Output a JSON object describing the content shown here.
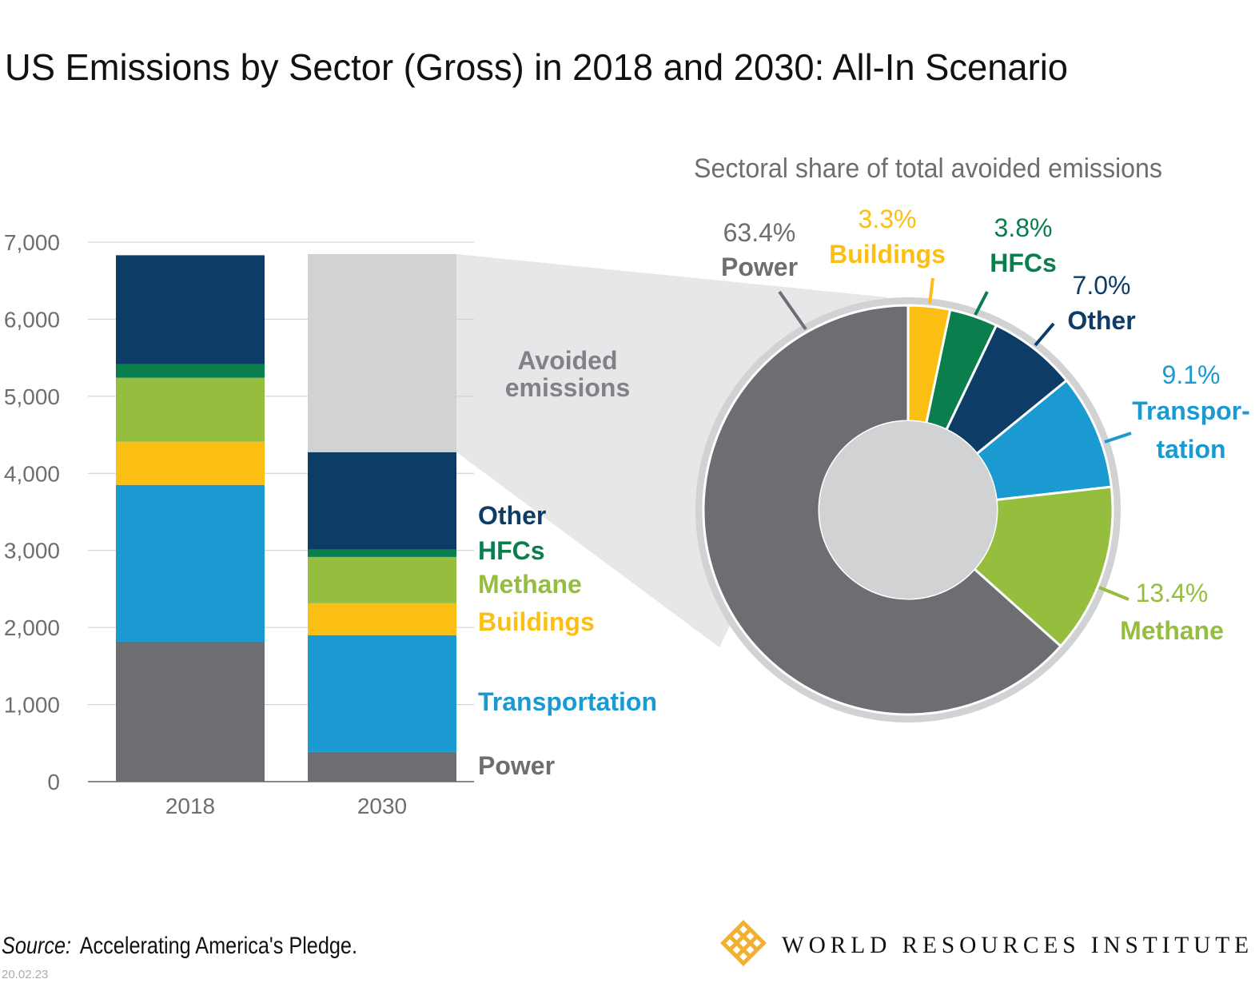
{
  "title": "US Emissions by Sector (Gross) in 2018 and 2030: All-In Scenario",
  "source_label": "Source:",
  "source_text": "Accelerating America's Pledge.",
  "date": "20.02.23",
  "logo_text": "WORLD RESOURCES INSTITUTE",
  "colors": {
    "Power": "#6d6e71",
    "Transportation": "#1b9ad2",
    "Buildings": "#fbbf14",
    "Methane": "#95bd3e",
    "HFCs": "#0b7e4e",
    "Other": "#0d3c66",
    "Avoided emissions": "#d1d2d4",
    "wedge": "#e6e7e8"
  },
  "chart_data": [
    {
      "type": "bar",
      "stacked": true,
      "categories": [
        "2018",
        "2030"
      ],
      "ylim": [
        0,
        7000
      ],
      "yticks": [
        "0",
        "1,000",
        "2,000",
        "3,000",
        "4,000",
        "5,000",
        "6,000",
        "7,000"
      ],
      "grid": true,
      "series": [
        {
          "name": "Power",
          "values": [
            1815,
            385
          ]
        },
        {
          "name": "Transportation",
          "values": [
            2035,
            1515
          ]
        },
        {
          "name": "Buildings",
          "values": [
            560,
            415
          ]
        },
        {
          "name": "Methane",
          "values": [
            830,
            600
          ]
        },
        {
          "name": "HFCs",
          "values": [
            175,
            95
          ]
        },
        {
          "name": "Other",
          "values": [
            1415,
            1265
          ]
        },
        {
          "name": "Avoided emissions",
          "values": [
            0,
            2570
          ]
        }
      ],
      "series_labels": [
        "Power",
        "Transportation",
        "Buildings",
        "Methane",
        "HFCs",
        "Other"
      ],
      "avoided_label": [
        "Avoided",
        "emissions"
      ]
    },
    {
      "type": "pie",
      "donut": true,
      "title": "Sectoral share of total avoided emissions",
      "slices": [
        {
          "name": "Buildings",
          "value": 3.3,
          "label": "3.3%"
        },
        {
          "name": "HFCs",
          "value": 3.8,
          "label": "3.8%"
        },
        {
          "name": "Other",
          "value": 7.0,
          "label": "7.0%"
        },
        {
          "name": "Transportation",
          "value": 9.1,
          "label": "9.1%",
          "display_name": [
            "Transpor-",
            "tation"
          ]
        },
        {
          "name": "Methane",
          "value": 13.4,
          "label": "13.4%"
        },
        {
          "name": "Power",
          "value": 63.4,
          "label": "63.4%"
        }
      ]
    }
  ]
}
